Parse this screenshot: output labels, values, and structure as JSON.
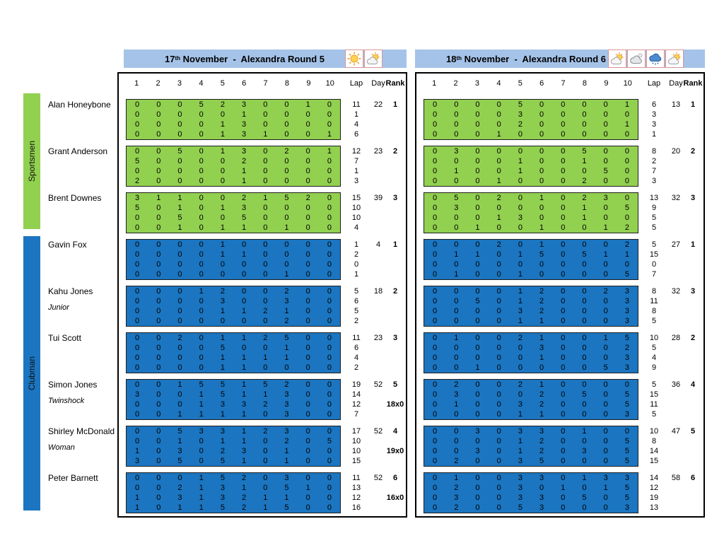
{
  "groups": [
    {
      "label": "Sportsmen",
      "color": "#92D050"
    },
    {
      "label": "Clubman",
      "color": "#1B75C0"
    }
  ],
  "columns": {
    "sections": [
      "1",
      "2",
      "3",
      "4",
      "5",
      "6",
      "7",
      "8",
      "9",
      "10"
    ],
    "lap": "Lap",
    "day": "Day",
    "rank": "Rank"
  },
  "panels": [
    {
      "title_day": "17",
      "title_ord": "th",
      "title_rest": "November  -  Alexandra Round 5",
      "weather": [
        "sunny",
        "partly-cloudy"
      ]
    },
    {
      "title_day": "18",
      "title_ord": "th",
      "title_rest": "November  -  Alexandra Round 6",
      "weather": [
        "partly-cloudy",
        "cloudy",
        "rain",
        "partly-cloudy"
      ]
    }
  ],
  "riders": [
    {
      "name": "Alan Honeybone",
      "subtitle": "",
      "group": 0,
      "results": [
        {
          "scores": [
            [
              0,
              0,
              0,
              5,
              2,
              3,
              0,
              0,
              1,
              0
            ],
            [
              0,
              0,
              0,
              0,
              0,
              1,
              0,
              0,
              0,
              0
            ],
            [
              0,
              0,
              0,
              0,
              1,
              3,
              0,
              0,
              0,
              0
            ],
            [
              0,
              0,
              0,
              0,
              1,
              3,
              1,
              0,
              0,
              1
            ]
          ],
          "laps": [
            11,
            1,
            4,
            6
          ],
          "day": 22,
          "rank": "1",
          "note": ""
        },
        {
          "scores": [
            [
              0,
              0,
              0,
              0,
              5,
              0,
              0,
              0,
              0,
              1
            ],
            [
              0,
              0,
              0,
              0,
              3,
              0,
              0,
              0,
              0,
              0
            ],
            [
              0,
              0,
              0,
              0,
              2,
              0,
              0,
              0,
              0,
              1
            ],
            [
              0,
              0,
              0,
              1,
              0,
              0,
              0,
              0,
              0,
              0
            ]
          ],
          "laps": [
            6,
            3,
            3,
            1
          ],
          "day": 13,
          "rank": "1",
          "note": ""
        }
      ]
    },
    {
      "name": "Grant Anderson",
      "subtitle": "",
      "group": 0,
      "results": [
        {
          "scores": [
            [
              0,
              0,
              5,
              0,
              1,
              3,
              0,
              2,
              0,
              1
            ],
            [
              5,
              0,
              0,
              0,
              0,
              2,
              0,
              0,
              0,
              0
            ],
            [
              0,
              0,
              0,
              0,
              0,
              1,
              0,
              0,
              0,
              0
            ],
            [
              2,
              0,
              0,
              0,
              0,
              1,
              0,
              0,
              0,
              0
            ]
          ],
          "laps": [
            12,
            7,
            1,
            3
          ],
          "day": 23,
          "rank": "2",
          "note": ""
        },
        {
          "scores": [
            [
              0,
              3,
              0,
              0,
              0,
              0,
              0,
              5,
              0,
              0
            ],
            [
              0,
              0,
              0,
              0,
              1,
              0,
              0,
              1,
              0,
              0
            ],
            [
              0,
              1,
              0,
              0,
              1,
              0,
              0,
              0,
              5,
              0
            ],
            [
              0,
              0,
              0,
              1,
              0,
              0,
              0,
              2,
              0,
              0
            ]
          ],
          "laps": [
            8,
            2,
            7,
            3
          ],
          "day": 20,
          "rank": "2",
          "note": ""
        }
      ]
    },
    {
      "name": "Brent Downes",
      "subtitle": "",
      "group": 0,
      "results": [
        {
          "scores": [
            [
              3,
              1,
              1,
              0,
              0,
              2,
              1,
              5,
              2,
              0
            ],
            [
              5,
              0,
              1,
              0,
              1,
              3,
              0,
              0,
              0,
              0
            ],
            [
              0,
              0,
              5,
              0,
              0,
              5,
              0,
              0,
              0,
              0
            ],
            [
              0,
              0,
              1,
              0,
              1,
              1,
              0,
              1,
              0,
              0
            ]
          ],
          "laps": [
            15,
            10,
            10,
            4
          ],
          "day": 39,
          "rank": "3",
          "note": ""
        },
        {
          "scores": [
            [
              0,
              5,
              0,
              2,
              0,
              1,
              0,
              2,
              3,
              0
            ],
            [
              0,
              3,
              0,
              0,
              0,
              0,
              0,
              1,
              0,
              5
            ],
            [
              0,
              0,
              0,
              1,
              3,
              0,
              0,
              1,
              0,
              0
            ],
            [
              0,
              0,
              1,
              0,
              0,
              1,
              0,
              0,
              1,
              2
            ]
          ],
          "laps": [
            13,
            9,
            5,
            5
          ],
          "day": 32,
          "rank": "3",
          "note": ""
        }
      ]
    },
    {
      "name": "Gavin Fox",
      "subtitle": "",
      "group": 1,
      "results": [
        {
          "scores": [
            [
              0,
              0,
              0,
              0,
              1,
              0,
              0,
              0,
              0,
              0
            ],
            [
              0,
              0,
              0,
              0,
              1,
              1,
              0,
              0,
              0,
              0
            ],
            [
              0,
              0,
              0,
              0,
              0,
              0,
              0,
              0,
              0,
              0
            ],
            [
              0,
              0,
              0,
              0,
              0,
              0,
              0,
              1,
              0,
              0
            ]
          ],
          "laps": [
            1,
            2,
            0,
            1
          ],
          "day": 4,
          "rank": "1",
          "note": ""
        },
        {
          "scores": [
            [
              0,
              0,
              0,
              2,
              0,
              1,
              0,
              0,
              0,
              2
            ],
            [
              0,
              1,
              1,
              0,
              1,
              5,
              0,
              5,
              1,
              1
            ],
            [
              0,
              0,
              0,
              0,
              0,
              0,
              0,
              0,
              0,
              0
            ],
            [
              0,
              1,
              0,
              0,
              1,
              0,
              0,
              0,
              0,
              5
            ]
          ],
          "laps": [
            5,
            15,
            0,
            7
          ],
          "day": 27,
          "rank": "1",
          "note": ""
        }
      ]
    },
    {
      "name": "Kahu Jones",
      "subtitle": "Junior",
      "group": 1,
      "results": [
        {
          "scores": [
            [
              0,
              0,
              0,
              1,
              2,
              0,
              0,
              2,
              0,
              0
            ],
            [
              0,
              0,
              0,
              0,
              3,
              0,
              0,
              3,
              0,
              0
            ],
            [
              0,
              0,
              0,
              0,
              1,
              1,
              2,
              1,
              0,
              0
            ],
            [
              0,
              0,
              0,
              0,
              0,
              0,
              0,
              2,
              0,
              0
            ]
          ],
          "laps": [
            5,
            6,
            5,
            2
          ],
          "day": 18,
          "rank": "2",
          "note": ""
        },
        {
          "scores": [
            [
              0,
              0,
              0,
              0,
              1,
              2,
              0,
              0,
              2,
              3
            ],
            [
              0,
              0,
              5,
              0,
              1,
              2,
              0,
              0,
              0,
              3
            ],
            [
              0,
              0,
              0,
              0,
              3,
              2,
              0,
              0,
              0,
              3
            ],
            [
              0,
              0,
              0,
              0,
              1,
              1,
              0,
              0,
              0,
              3
            ]
          ],
          "laps": [
            8,
            11,
            8,
            5
          ],
          "day": 32,
          "rank": "3",
          "note": ""
        }
      ]
    },
    {
      "name": "Tui Scott",
      "subtitle": "",
      "group": 1,
      "results": [
        {
          "scores": [
            [
              0,
              0,
              2,
              0,
              1,
              1,
              2,
              5,
              0,
              0
            ],
            [
              0,
              0,
              0,
              0,
              5,
              0,
              0,
              1,
              0,
              0
            ],
            [
              0,
              0,
              0,
              0,
              1,
              1,
              1,
              1,
              0,
              0
            ],
            [
              0,
              0,
              0,
              0,
              1,
              1,
              0,
              0,
              0,
              0
            ]
          ],
          "laps": [
            11,
            6,
            4,
            2
          ],
          "day": 23,
          "rank": "3",
          "note": ""
        },
        {
          "scores": [
            [
              0,
              1,
              0,
              0,
              2,
              1,
              0,
              0,
              1,
              5
            ],
            [
              0,
              0,
              0,
              0,
              0,
              3,
              0,
              0,
              0,
              2
            ],
            [
              0,
              0,
              0,
              0,
              0,
              1,
              0,
              0,
              0,
              3
            ],
            [
              0,
              0,
              1,
              0,
              0,
              0,
              0,
              0,
              5,
              3
            ]
          ],
          "laps": [
            10,
            5,
            4,
            9
          ],
          "day": 28,
          "rank": "2",
          "note": ""
        }
      ]
    },
    {
      "name": "Simon Jones",
      "subtitle": "Twinshock",
      "group": 1,
      "results": [
        {
          "scores": [
            [
              0,
              0,
              1,
              5,
              5,
              1,
              5,
              2,
              0,
              0
            ],
            [
              3,
              0,
              0,
              1,
              5,
              1,
              1,
              3,
              0,
              0
            ],
            [
              0,
              0,
              0,
              1,
              3,
              3,
              2,
              3,
              0,
              0
            ],
            [
              0,
              0,
              1,
              1,
              1,
              1,
              0,
              3,
              0,
              0
            ]
          ],
          "laps": [
            19,
            14,
            12,
            7
          ],
          "day": 52,
          "rank": "5",
          "note": "18x0"
        },
        {
          "scores": [
            [
              0,
              2,
              0,
              0,
              2,
              1,
              0,
              0,
              0,
              0
            ],
            [
              0,
              3,
              0,
              0,
              0,
              2,
              0,
              5,
              0,
              5
            ],
            [
              0,
              1,
              0,
              0,
              3,
              2,
              0,
              0,
              0,
              5
            ],
            [
              0,
              0,
              0,
              0,
              1,
              1,
              0,
              0,
              0,
              3
            ]
          ],
          "laps": [
            5,
            15,
            11,
            5
          ],
          "day": 36,
          "rank": "4",
          "note": ""
        }
      ]
    },
    {
      "name": "Shirley McDonald",
      "subtitle": "Woman",
      "group": 1,
      "results": [
        {
          "scores": [
            [
              0,
              0,
              5,
              3,
              3,
              1,
              2,
              3,
              0,
              0
            ],
            [
              0,
              0,
              1,
              0,
              1,
              1,
              0,
              2,
              0,
              5
            ],
            [
              1,
              0,
              3,
              0,
              2,
              3,
              0,
              1,
              0,
              0
            ],
            [
              3,
              0,
              5,
              0,
              5,
              1,
              0,
              1,
              0,
              0
            ]
          ],
          "laps": [
            17,
            10,
            10,
            15
          ],
          "day": 52,
          "rank": "4",
          "note": "19x0"
        },
        {
          "scores": [
            [
              0,
              0,
              3,
              0,
              3,
              3,
              0,
              1,
              0,
              0
            ],
            [
              0,
              0,
              0,
              0,
              1,
              2,
              0,
              0,
              0,
              5
            ],
            [
              0,
              0,
              3,
              0,
              1,
              2,
              0,
              3,
              0,
              5
            ],
            [
              0,
              2,
              0,
              0,
              3,
              5,
              0,
              0,
              0,
              5
            ]
          ],
          "laps": [
            10,
            8,
            14,
            15
          ],
          "day": 47,
          "rank": "5",
          "note": ""
        }
      ]
    },
    {
      "name": "Peter Barnett",
      "subtitle": "",
      "group": 1,
      "results": [
        {
          "scores": [
            [
              0,
              0,
              0,
              1,
              5,
              2,
              0,
              3,
              0,
              0
            ],
            [
              0,
              0,
              2,
              1,
              3,
              1,
              0,
              5,
              1,
              0
            ],
            [
              1,
              0,
              3,
              1,
              3,
              2,
              1,
              1,
              0,
              0
            ],
            [
              1,
              0,
              1,
              1,
              5,
              2,
              1,
              5,
              0,
              0
            ]
          ],
          "laps": [
            11,
            13,
            12,
            16
          ],
          "day": 52,
          "rank": "6",
          "note": "16x0"
        },
        {
          "scores": [
            [
              0,
              1,
              0,
              0,
              3,
              3,
              0,
              1,
              3,
              3
            ],
            [
              0,
              2,
              0,
              0,
              3,
              0,
              1,
              0,
              1,
              5
            ],
            [
              0,
              3,
              0,
              0,
              3,
              3,
              0,
              5,
              0,
              5
            ],
            [
              0,
              2,
              0,
              0,
              5,
              3,
              0,
              0,
              0,
              3
            ]
          ],
          "laps": [
            14,
            12,
            19,
            13
          ],
          "day": 58,
          "rank": "6",
          "note": ""
        }
      ]
    }
  ]
}
